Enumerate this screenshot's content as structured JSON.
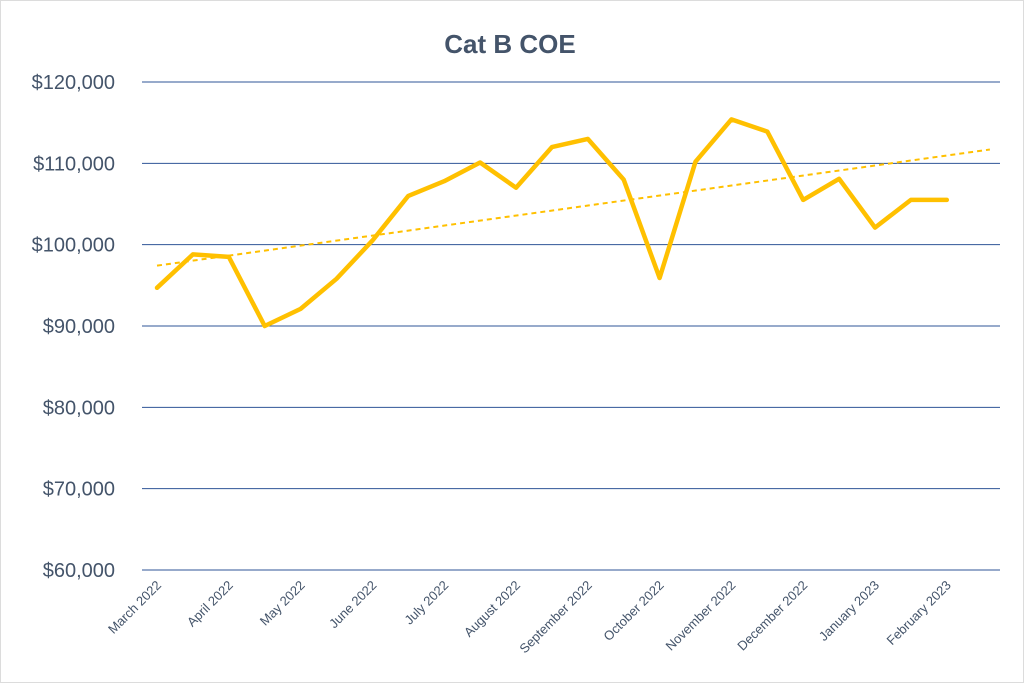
{
  "chart_data": {
    "type": "line",
    "title": "Cat B COE",
    "xlabel": "",
    "ylabel": "",
    "ylim": [
      60000,
      120000
    ],
    "y_ticks": [
      {
        "value": 60000,
        "label": "$60,000"
      },
      {
        "value": 70000,
        "label": "$70,000"
      },
      {
        "value": 80000,
        "label": "$80,000"
      },
      {
        "value": 90000,
        "label": "$90,000"
      },
      {
        "value": 100000,
        "label": "$100,000"
      },
      {
        "value": 110000,
        "label": "$110,000"
      },
      {
        "value": 120000,
        "label": "$120,000"
      }
    ],
    "x_tick_labels": [
      "March 2022",
      "April 2022",
      "May 2022",
      "June 2022",
      "July 2022",
      "August 2022",
      "September 2022",
      "October 2022",
      "November 2022",
      "December 2022",
      "January 2023",
      "February 2023"
    ],
    "series": [
      {
        "values": [
          94700,
          98800,
          98500,
          90000,
          92100,
          95800,
          100500,
          106000,
          107800,
          110100,
          107000,
          112000,
          113000,
          108000,
          95900,
          110200,
          115400,
          113900,
          105500,
          108100,
          102100,
          105500,
          105500
        ]
      }
    ],
    "trendline": {
      "style": "dashed-linear"
    },
    "grid": true,
    "legend": "none",
    "colors": {
      "line": "#ffc000",
      "grid": "#2f5597",
      "text": "#44546a"
    }
  }
}
